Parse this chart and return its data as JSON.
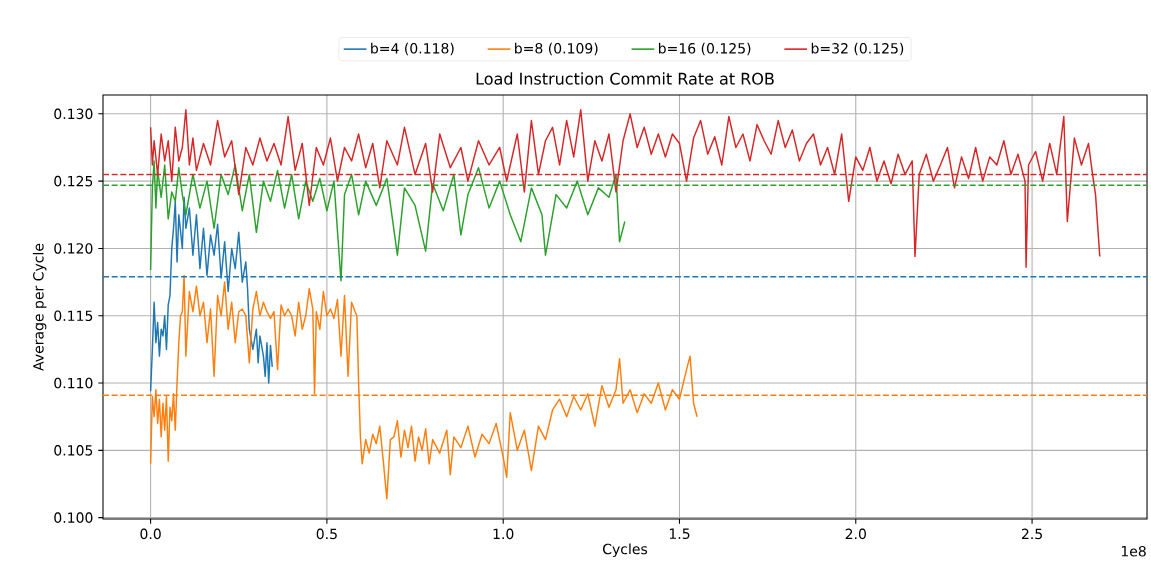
{
  "chart_data": {
    "type": "line",
    "title": "Load Instruction Commit Rate at ROB",
    "xlabel": "Cycles",
    "ylabel": "Average per Cycle",
    "annotations": [
      "1e8"
    ],
    "xlim": [
      -0.135,
      2.826
    ],
    "ylim": [
      0.0999,
      0.1314
    ],
    "xticks": [
      {
        "value": 0,
        "label": "0.0"
      },
      {
        "value": 0.5,
        "label": "0.5"
      },
      {
        "value": 1,
        "label": "1.0"
      },
      {
        "value": 1.5,
        "label": "1.5"
      },
      {
        "value": 2,
        "label": "2.0"
      },
      {
        "value": 2.5,
        "label": "2.5"
      }
    ],
    "yticks": [
      {
        "value": 0.1,
        "label": "0.100"
      },
      {
        "value": 0.105,
        "label": "0.105"
      },
      {
        "value": 0.11,
        "label": "0.110"
      },
      {
        "value": 0.115,
        "label": "0.115"
      },
      {
        "value": 0.12,
        "label": "0.120"
      },
      {
        "value": 0.125,
        "label": "0.125"
      },
      {
        "value": 0.13,
        "label": "0.130"
      }
    ],
    "grid": true,
    "legend": "top",
    "marker": "none",
    "line_style": "solid",
    "ref_lines": [
      {
        "axis": "y",
        "value": 0.1179,
        "color": "#1f77b4",
        "line_style": "dashed"
      },
      {
        "axis": "y",
        "value": 0.1091,
        "color": "#ff7f0e",
        "line_style": "dashed"
      },
      {
        "axis": "y",
        "value": 0.1247,
        "color": "#2ca02c",
        "line_style": "dashed"
      },
      {
        "axis": "y",
        "value": 0.1255,
        "color": "#d62728",
        "line_style": "dashed"
      }
    ],
    "series": [
      {
        "name": "b=4  (0.118)",
        "color": "#1f77b4",
        "x": [
          0.0,
          0.005,
          0.01,
          0.015,
          0.02,
          0.025,
          0.03,
          0.035,
          0.04,
          0.045,
          0.05,
          0.055,
          0.06,
          0.065,
          0.07,
          0.075,
          0.08,
          0.09,
          0.095,
          0.1,
          0.11,
          0.12,
          0.13,
          0.14,
          0.15,
          0.16,
          0.17,
          0.18,
          0.19,
          0.2,
          0.21,
          0.22,
          0.23,
          0.24,
          0.25,
          0.26,
          0.27,
          0.275,
          0.28,
          0.29,
          0.3,
          0.305,
          0.31,
          0.32,
          0.325,
          0.33,
          0.335,
          0.34,
          0.345
        ],
        "values": [
          0.1094,
          0.1125,
          0.116,
          0.113,
          0.1145,
          0.112,
          0.114,
          0.1135,
          0.115,
          0.1125,
          0.1158,
          0.1165,
          0.12,
          0.1215,
          0.1235,
          0.119,
          0.1225,
          0.12,
          0.1238,
          0.1215,
          0.123,
          0.1195,
          0.1225,
          0.1185,
          0.1215,
          0.118,
          0.121,
          0.1195,
          0.1218,
          0.1178,
          0.1205,
          0.1168,
          0.12,
          0.1185,
          0.1212,
          0.1175,
          0.119,
          0.117,
          0.114,
          0.1125,
          0.114,
          0.1115,
          0.1135,
          0.112,
          0.1105,
          0.113,
          0.11,
          0.1128,
          0.1112
        ]
      },
      {
        "name": "b=8  (0.109)",
        "color": "#ff7f0e",
        "x": [
          0.0,
          0.005,
          0.01,
          0.015,
          0.02,
          0.025,
          0.03,
          0.035,
          0.04,
          0.045,
          0.05,
          0.055,
          0.06,
          0.065,
          0.07,
          0.075,
          0.08,
          0.085,
          0.09,
          0.095,
          0.1,
          0.11,
          0.12,
          0.13,
          0.14,
          0.15,
          0.16,
          0.17,
          0.18,
          0.19,
          0.2,
          0.21,
          0.22,
          0.23,
          0.24,
          0.25,
          0.26,
          0.27,
          0.28,
          0.29,
          0.3,
          0.31,
          0.32,
          0.33,
          0.34,
          0.35,
          0.36,
          0.37,
          0.38,
          0.39,
          0.4,
          0.41,
          0.42,
          0.43,
          0.44,
          0.45,
          0.46,
          0.465,
          0.47,
          0.48,
          0.49,
          0.5,
          0.51,
          0.52,
          0.53,
          0.54,
          0.55,
          0.56,
          0.57,
          0.58,
          0.585,
          0.59,
          0.595,
          0.6,
          0.61,
          0.62,
          0.63,
          0.64,
          0.65,
          0.66,
          0.67,
          0.68,
          0.69,
          0.7,
          0.71,
          0.72,
          0.73,
          0.74,
          0.75,
          0.76,
          0.77,
          0.78,
          0.79,
          0.8,
          0.82,
          0.84,
          0.85,
          0.86,
          0.88,
          0.9,
          0.92,
          0.94,
          0.96,
          0.98,
          1.0,
          1.01,
          1.02,
          1.04,
          1.06,
          1.08,
          1.1,
          1.12,
          1.14,
          1.16,
          1.18,
          1.2,
          1.22,
          1.24,
          1.26,
          1.28,
          1.3,
          1.32,
          1.33,
          1.34,
          1.36,
          1.38,
          1.4,
          1.42,
          1.44,
          1.46,
          1.48,
          1.5,
          1.52,
          1.53,
          1.54,
          1.55
        ],
        "values": [
          0.104,
          0.109,
          0.1075,
          0.1095,
          0.107,
          0.1088,
          0.106,
          0.1085,
          0.1065,
          0.109,
          0.1042,
          0.1082,
          0.1072,
          0.1092,
          0.1065,
          0.11,
          0.113,
          0.115,
          0.1153,
          0.118,
          0.112,
          0.1168,
          0.1153,
          0.1172,
          0.115,
          0.116,
          0.113,
          0.1155,
          0.1105,
          0.1165,
          0.115,
          0.1175,
          0.114,
          0.116,
          0.113,
          0.1153,
          0.1155,
          0.115,
          0.1115,
          0.1155,
          0.1168,
          0.115,
          0.116,
          0.1153,
          0.1148,
          0.1153,
          0.111,
          0.1158,
          0.115,
          0.1155,
          0.115,
          0.1135,
          0.116,
          0.114,
          0.115,
          0.117,
          0.1155,
          0.1092,
          0.1153,
          0.114,
          0.1168,
          0.115,
          0.1155,
          0.1148,
          0.1162,
          0.112,
          0.1165,
          0.1105,
          0.116,
          0.1153,
          0.115,
          0.11,
          0.106,
          0.104,
          0.1058,
          0.1048,
          0.1062,
          0.1055,
          0.1068,
          0.1042,
          0.1014,
          0.1058,
          0.106,
          0.1072,
          0.1045,
          0.1065,
          0.1052,
          0.1068,
          0.1042,
          0.106,
          0.105,
          0.1066,
          0.104,
          0.1058,
          0.1048,
          0.1065,
          0.1032,
          0.106,
          0.1052,
          0.1068,
          0.1045,
          0.1062,
          0.1055,
          0.107,
          0.1045,
          0.103,
          0.1078,
          0.105,
          0.1065,
          0.1035,
          0.1068,
          0.1058,
          0.108,
          0.1088,
          0.1075,
          0.109,
          0.108,
          0.1092,
          0.1068,
          0.1098,
          0.1082,
          0.1095,
          0.1118,
          0.1085,
          0.1095,
          0.1078,
          0.1092,
          0.1085,
          0.11,
          0.108,
          0.1095,
          0.1088,
          0.111,
          0.112,
          0.1085,
          0.1075
        ]
      },
      {
        "name": "b=16  (0.125)",
        "color": "#2ca02c",
        "x": [
          0.0,
          0.005,
          0.01,
          0.015,
          0.02,
          0.03,
          0.04,
          0.05,
          0.06,
          0.07,
          0.08,
          0.09,
          0.1,
          0.12,
          0.14,
          0.16,
          0.18,
          0.2,
          0.22,
          0.24,
          0.26,
          0.28,
          0.3,
          0.32,
          0.34,
          0.36,
          0.38,
          0.4,
          0.42,
          0.44,
          0.46,
          0.48,
          0.5,
          0.52,
          0.54,
          0.55,
          0.57,
          0.59,
          0.61,
          0.64,
          0.67,
          0.7,
          0.72,
          0.75,
          0.78,
          0.8,
          0.83,
          0.86,
          0.88,
          0.9,
          0.93,
          0.96,
          0.99,
          1.02,
          1.05,
          1.08,
          1.11,
          1.12,
          1.15,
          1.18,
          1.21,
          1.24,
          1.27,
          1.3,
          1.32,
          1.33,
          1.345
        ],
        "values": [
          0.1184,
          0.1245,
          0.1265,
          0.123,
          0.1258,
          0.1238,
          0.1262,
          0.1222,
          0.1242,
          0.1235,
          0.126,
          0.124,
          0.1225,
          0.1255,
          0.123,
          0.125,
          0.1215,
          0.1255,
          0.124,
          0.1262,
          0.1228,
          0.1255,
          0.1212,
          0.125,
          0.1235,
          0.1258,
          0.123,
          0.1255,
          0.1222,
          0.125,
          0.1235,
          0.1252,
          0.1228,
          0.125,
          0.1176,
          0.124,
          0.1255,
          0.1225,
          0.125,
          0.1232,
          0.1252,
          0.1195,
          0.1245,
          0.1232,
          0.1198,
          0.1248,
          0.1228,
          0.1255,
          0.121,
          0.124,
          0.126,
          0.123,
          0.125,
          0.1225,
          0.1205,
          0.1245,
          0.1225,
          0.1195,
          0.124,
          0.123,
          0.125,
          0.1225,
          0.1245,
          0.1238,
          0.1255,
          0.1205,
          0.122
        ]
      },
      {
        "name": "b=32  (0.125)",
        "color": "#d62728",
        "x": [
          0.0,
          0.005,
          0.01,
          0.02,
          0.03,
          0.04,
          0.05,
          0.06,
          0.07,
          0.08,
          0.09,
          0.1,
          0.11,
          0.12,
          0.13,
          0.15,
          0.17,
          0.19,
          0.21,
          0.23,
          0.25,
          0.27,
          0.29,
          0.31,
          0.33,
          0.35,
          0.37,
          0.39,
          0.41,
          0.43,
          0.45,
          0.47,
          0.49,
          0.51,
          0.53,
          0.55,
          0.57,
          0.59,
          0.61,
          0.63,
          0.65,
          0.67,
          0.7,
          0.72,
          0.75,
          0.78,
          0.8,
          0.82,
          0.85,
          0.88,
          0.9,
          0.93,
          0.96,
          0.99,
          1.01,
          1.04,
          1.06,
          1.08,
          1.1,
          1.12,
          1.14,
          1.16,
          1.18,
          1.2,
          1.22,
          1.24,
          1.26,
          1.28,
          1.3,
          1.32,
          1.34,
          1.36,
          1.38,
          1.4,
          1.42,
          1.44,
          1.46,
          1.48,
          1.5,
          1.52,
          1.54,
          1.56,
          1.58,
          1.6,
          1.62,
          1.64,
          1.66,
          1.68,
          1.7,
          1.72,
          1.74,
          1.76,
          1.78,
          1.8,
          1.82,
          1.84,
          1.86,
          1.88,
          1.9,
          1.92,
          1.94,
          1.96,
          1.98,
          2.0,
          2.02,
          2.04,
          2.06,
          2.08,
          2.1,
          2.12,
          2.14,
          2.16,
          2.168,
          2.18,
          2.2,
          2.22,
          2.24,
          2.26,
          2.28,
          2.3,
          2.32,
          2.34,
          2.36,
          2.38,
          2.4,
          2.42,
          2.44,
          2.46,
          2.48,
          2.483,
          2.49,
          2.51,
          2.53,
          2.55,
          2.57,
          2.59,
          2.6,
          2.62,
          2.64,
          2.66,
          2.67,
          2.68,
          2.692
        ],
        "values": [
          0.129,
          0.1262,
          0.128,
          0.1255,
          0.1285,
          0.1265,
          0.128,
          0.125,
          0.129,
          0.1265,
          0.1275,
          0.1303,
          0.1262,
          0.1282,
          0.1258,
          0.1278,
          0.1262,
          0.1295,
          0.1268,
          0.128,
          0.124,
          0.1275,
          0.1262,
          0.1282,
          0.1265,
          0.1278,
          0.1262,
          0.1298,
          0.1258,
          0.1278,
          0.1232,
          0.1275,
          0.1262,
          0.1282,
          0.125,
          0.1275,
          0.1265,
          0.1285,
          0.126,
          0.1278,
          0.1245,
          0.128,
          0.1262,
          0.129,
          0.1255,
          0.1278,
          0.1242,
          0.1285,
          0.126,
          0.1275,
          0.125,
          0.128,
          0.1262,
          0.1275,
          0.125,
          0.1285,
          0.1242,
          0.1295,
          0.1255,
          0.128,
          0.129,
          0.1262,
          0.1295,
          0.1268,
          0.1303,
          0.125,
          0.128,
          0.1265,
          0.1285,
          0.1242,
          0.128,
          0.13,
          0.1275,
          0.129,
          0.127,
          0.1285,
          0.1268,
          0.1285,
          0.1278,
          0.125,
          0.1282,
          0.1295,
          0.127,
          0.1283,
          0.1262,
          0.1298,
          0.1275,
          0.1285,
          0.1265,
          0.1292,
          0.128,
          0.127,
          0.1295,
          0.1275,
          0.1288,
          0.1265,
          0.1278,
          0.1285,
          0.1262,
          0.1275,
          0.1255,
          0.1285,
          0.1235,
          0.1268,
          0.1258,
          0.1275,
          0.125,
          0.1265,
          0.1248,
          0.127,
          0.1255,
          0.1265,
          0.1194,
          0.1255,
          0.127,
          0.125,
          0.1262,
          0.1275,
          0.1245,
          0.1268,
          0.1252,
          0.1275,
          0.125,
          0.1268,
          0.1262,
          0.128,
          0.1255,
          0.127,
          0.125,
          0.1186,
          0.1262,
          0.1272,
          0.125,
          0.1278,
          0.1255,
          0.1298,
          0.122,
          0.1282,
          0.1262,
          0.1278,
          0.1258,
          0.124,
          0.1194
        ]
      }
    ]
  }
}
